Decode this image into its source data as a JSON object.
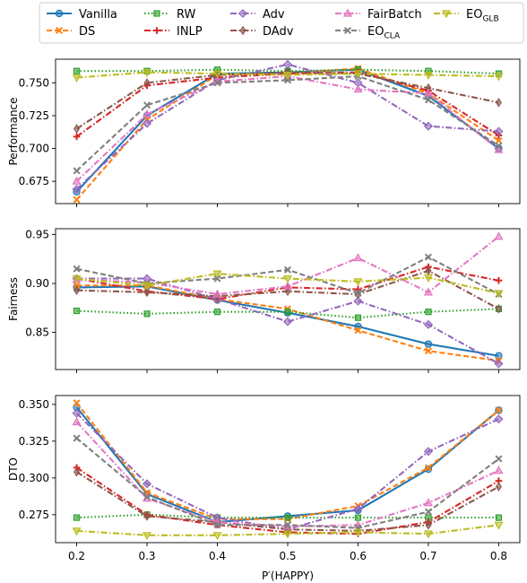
{
  "legend": {
    "entries": [
      {
        "label": "Vanilla",
        "sub": ""
      },
      {
        "label": "DS",
        "sub": ""
      },
      {
        "label": "RW",
        "sub": ""
      },
      {
        "label": "INLP",
        "sub": ""
      },
      {
        "label": "Adv",
        "sub": ""
      },
      {
        "label": "DAdv",
        "sub": ""
      },
      {
        "label": "FairBatch",
        "sub": ""
      },
      {
        "label": "EO",
        "sub": "CLA"
      },
      {
        "label": "EO",
        "sub": "GLB"
      }
    ],
    "placement": "top"
  },
  "chart_data": [
    {
      "type": "line",
      "title": "",
      "xlabel": "",
      "ylabel": "Performance",
      "x": [
        0.2,
        0.3,
        0.4,
        0.5,
        0.6,
        0.7,
        0.8
      ],
      "xlim": [
        0.17,
        0.83
      ],
      "ylim": [
        0.658,
        0.768
      ],
      "yticks": [
        0.675,
        0.7,
        0.725,
        0.75
      ],
      "ytick_labels": [
        "0.675",
        "0.700",
        "0.725",
        "0.750"
      ],
      "grid": false,
      "series": [
        {
          "name": "Vanilla",
          "color": "#1f77b4",
          "style": "solid",
          "marker": "circle",
          "values": [
            0.667,
            0.725,
            0.757,
            0.758,
            0.76,
            0.74,
            0.7
          ]
        },
        {
          "name": "DS",
          "color": "#ff7f0e",
          "style": "dashed",
          "marker": "x",
          "values": [
            0.661,
            0.722,
            0.756,
            0.757,
            0.761,
            0.742,
            0.706
          ]
        },
        {
          "name": "RW",
          "color": "#2ca02c",
          "style": "dotted",
          "marker": "square",
          "values": [
            0.759,
            0.759,
            0.76,
            0.759,
            0.76,
            0.759,
            0.757
          ]
        },
        {
          "name": "INLP",
          "color": "#d62728",
          "style": "dashdot",
          "marker": "plus",
          "values": [
            0.709,
            0.748,
            0.754,
            0.757,
            0.758,
            0.744,
            0.71
          ]
        },
        {
          "name": "Adv",
          "color": "#9467bd",
          "style": "dashdot",
          "marker": "diamond",
          "values": [
            0.669,
            0.719,
            0.752,
            0.764,
            0.75,
            0.717,
            0.713
          ]
        },
        {
          "name": "DAdv",
          "color": "#8c564b",
          "style": "dashdot",
          "marker": "thin_diamond",
          "values": [
            0.715,
            0.75,
            0.756,
            0.758,
            0.757,
            0.746,
            0.735
          ]
        },
        {
          "name": "FairBatch",
          "color": "#e377c2",
          "style": "dashdot",
          "marker": "triangle_up",
          "values": [
            0.675,
            0.726,
            0.751,
            0.755,
            0.745,
            0.742,
            0.699
          ]
        },
        {
          "name": "EO_CLA",
          "color": "#7f7f7f",
          "style": "dashed",
          "marker": "x",
          "values": [
            0.683,
            0.733,
            0.75,
            0.752,
            0.755,
            0.737,
            0.702
          ]
        },
        {
          "name": "EO_GLB",
          "color": "#bcbd22",
          "style": "dashdot",
          "marker": "triangle_down",
          "values": [
            0.754,
            0.758,
            0.757,
            0.756,
            0.757,
            0.756,
            0.755
          ]
        }
      ]
    },
    {
      "type": "line",
      "title": "",
      "xlabel": "",
      "ylabel": "Fairness",
      "x": [
        0.2,
        0.3,
        0.4,
        0.5,
        0.6,
        0.7,
        0.8
      ],
      "xlim": [
        0.17,
        0.83
      ],
      "ylim": [
        0.812,
        0.956
      ],
      "yticks": [
        0.85,
        0.9,
        0.95
      ],
      "ytick_labels": [
        "0.85",
        "0.90",
        "0.95"
      ],
      "grid": false,
      "series": [
        {
          "name": "Vanilla",
          "color": "#1f77b4",
          "style": "solid",
          "marker": "circle",
          "values": [
            0.896,
            0.897,
            0.883,
            0.87,
            0.856,
            0.838,
            0.826
          ]
        },
        {
          "name": "DS",
          "color": "#ff7f0e",
          "style": "dashed",
          "marker": "x",
          "values": [
            0.898,
            0.898,
            0.884,
            0.874,
            0.852,
            0.831,
            0.821
          ]
        },
        {
          "name": "RW",
          "color": "#2ca02c",
          "style": "dotted",
          "marker": "square",
          "values": [
            0.872,
            0.869,
            0.871,
            0.871,
            0.865,
            0.871,
            0.874
          ]
        },
        {
          "name": "INLP",
          "color": "#d62728",
          "style": "dashdot",
          "marker": "plus",
          "values": [
            0.905,
            0.892,
            0.884,
            0.896,
            0.894,
            0.917,
            0.903
          ]
        },
        {
          "name": "Adv",
          "color": "#9467bd",
          "style": "dashdot",
          "marker": "diamond",
          "values": [
            0.905,
            0.905,
            0.884,
            0.861,
            0.882,
            0.858,
            0.818
          ]
        },
        {
          "name": "DAdv",
          "color": "#8c564b",
          "style": "dashdot",
          "marker": "thin_diamond",
          "values": [
            0.893,
            0.891,
            0.887,
            0.892,
            0.889,
            0.913,
            0.874
          ]
        },
        {
          "name": "FairBatch",
          "color": "#e377c2",
          "style": "dashdot",
          "marker": "triangle_up",
          "values": [
            0.904,
            0.901,
            0.889,
            0.897,
            0.926,
            0.891,
            0.948
          ]
        },
        {
          "name": "EO_CLA",
          "color": "#7f7f7f",
          "style": "dashed",
          "marker": "x",
          "values": [
            0.915,
            0.9,
            0.905,
            0.914,
            0.89,
            0.927,
            0.889
          ]
        },
        {
          "name": "EO_GLB",
          "color": "#bcbd22",
          "style": "dashdot",
          "marker": "triangle_down",
          "values": [
            0.905,
            0.898,
            0.91,
            0.905,
            0.902,
            0.906,
            0.89
          ]
        }
      ]
    },
    {
      "type": "line",
      "title": "",
      "xlabel": "P′(HAPPY)",
      "ylabel": "DTO",
      "x": [
        0.2,
        0.3,
        0.4,
        0.5,
        0.6,
        0.7,
        0.8
      ],
      "xlim": [
        0.17,
        0.83
      ],
      "xticks": [
        0.2,
        0.3,
        0.4,
        0.5,
        0.6,
        0.7,
        0.8
      ],
      "xtick_labels": [
        "0.2",
        "0.3",
        "0.4",
        "0.5",
        "0.6",
        "0.7",
        "0.8"
      ],
      "ylim": [
        0.256,
        0.356
      ],
      "yticks": [
        0.275,
        0.3,
        0.325,
        0.35
      ],
      "ytick_labels": [
        "0.275",
        "0.300",
        "0.325",
        "0.350"
      ],
      "grid": false,
      "series": [
        {
          "name": "Vanilla",
          "color": "#1f77b4",
          "style": "solid",
          "marker": "circle",
          "values": [
            0.348,
            0.289,
            0.27,
            0.274,
            0.278,
            0.306,
            0.346
          ]
        },
        {
          "name": "DS",
          "color": "#ff7f0e",
          "style": "dashed",
          "marker": "x",
          "values": [
            0.351,
            0.29,
            0.272,
            0.272,
            0.281,
            0.307,
            0.346
          ]
        },
        {
          "name": "RW",
          "color": "#2ca02c",
          "style": "dotted",
          "marker": "square",
          "values": [
            0.273,
            0.275,
            0.273,
            0.273,
            0.273,
            0.273,
            0.273
          ]
        },
        {
          "name": "INLP",
          "color": "#d62728",
          "style": "dashdot",
          "marker": "plus",
          "values": [
            0.307,
            0.275,
            0.268,
            0.263,
            0.262,
            0.27,
            0.298
          ]
        },
        {
          "name": "Adv",
          "color": "#9467bd",
          "style": "dashdot",
          "marker": "diamond",
          "values": [
            0.344,
            0.296,
            0.273,
            0.265,
            0.279,
            0.318,
            0.34
          ]
        },
        {
          "name": "DAdv",
          "color": "#8c564b",
          "style": "dashdot",
          "marker": "thin_diamond",
          "values": [
            0.304,
            0.274,
            0.27,
            0.265,
            0.264,
            0.268,
            0.294
          ]
        },
        {
          "name": "FairBatch",
          "color": "#e377c2",
          "style": "dashdot",
          "marker": "triangle_up",
          "values": [
            0.338,
            0.286,
            0.27,
            0.267,
            0.268,
            0.283,
            0.305
          ]
        },
        {
          "name": "EO_CLA",
          "color": "#7f7f7f",
          "style": "dashed",
          "marker": "x",
          "values": [
            0.327,
            0.287,
            0.268,
            0.268,
            0.266,
            0.277,
            0.313
          ]
        },
        {
          "name": "EO_GLB",
          "color": "#bcbd22",
          "style": "dashdot",
          "marker": "triangle_down",
          "values": [
            0.264,
            0.261,
            0.261,
            0.262,
            0.263,
            0.262,
            0.268
          ]
        }
      ]
    }
  ]
}
